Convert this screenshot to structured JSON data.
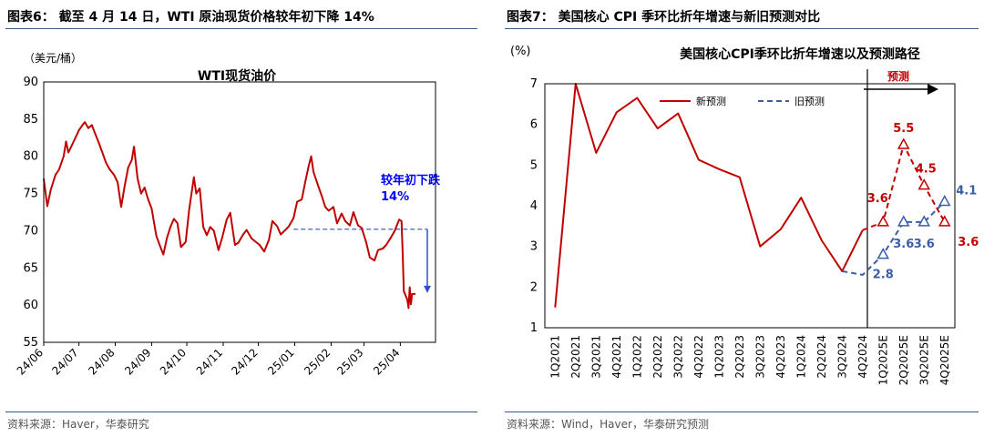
{
  "left": {
    "figure_title": "图表6：  截至 4 月 14 日，WTI 原油现货价格较年初下降 14%",
    "source": "资料来源：Haver，华泰研究",
    "colors": {
      "line": "#c00000",
      "annotation": "#0000ff",
      "dashed": "#2f4fd0",
      "frame": "#3a5a8a"
    },
    "chart_data": {
      "type": "line",
      "title": "WTI现货油价",
      "ylabel": "（美元/桶）",
      "ylim": [
        55,
        90
      ],
      "yticks": [
        55,
        60,
        65,
        70,
        75,
        80,
        85,
        90
      ],
      "xlim": [
        "2024-06-01",
        "2025-05-01"
      ],
      "xtick_labels": [
        "24/06",
        "24/07",
        "24/08",
        "24/09",
        "24/10",
        "24/11",
        "24/12",
        "25/01",
        "25/02",
        "25/03",
        "25/04"
      ],
      "xtick_dates": [
        "2024-06-01",
        "2024-07-01",
        "2024-08-01",
        "2024-09-01",
        "2024-10-01",
        "2024-11-01",
        "2024-12-01",
        "2025-01-01",
        "2025-02-01",
        "2025-03-01",
        "2025-04-01"
      ],
      "series": [
        {
          "points": [
            [
              "2024-06-01",
              77.0
            ],
            [
              "2024-06-04",
              73.3
            ],
            [
              "2024-06-07",
              75.5
            ],
            [
              "2024-06-11",
              77.5
            ],
            [
              "2024-06-14",
              78.2
            ],
            [
              "2024-06-18",
              80.0
            ],
            [
              "2024-06-20",
              82.0
            ],
            [
              "2024-06-22",
              80.5
            ],
            [
              "2024-06-25",
              81.5
            ],
            [
              "2024-06-28",
              82.5
            ],
            [
              "2024-07-01",
              83.5
            ],
            [
              "2024-07-04",
              84.2
            ],
            [
              "2024-07-06",
              84.6
            ],
            [
              "2024-07-09",
              83.8
            ],
            [
              "2024-07-12",
              84.2
            ],
            [
              "2024-07-15",
              83.0
            ],
            [
              "2024-07-18",
              81.8
            ],
            [
              "2024-07-21",
              80.5
            ],
            [
              "2024-07-24",
              79.2
            ],
            [
              "2024-07-27",
              78.3
            ],
            [
              "2024-07-31",
              77.5
            ],
            [
              "2024-08-03",
              76.5
            ],
            [
              "2024-08-06",
              73.2
            ],
            [
              "2024-08-09",
              76.0
            ],
            [
              "2024-08-12",
              78.5
            ],
            [
              "2024-08-15",
              79.5
            ],
            [
              "2024-08-17",
              81.3
            ],
            [
              "2024-08-20",
              77.0
            ],
            [
              "2024-08-23",
              75.0
            ],
            [
              "2024-08-26",
              75.8
            ],
            [
              "2024-08-29",
              74.2
            ],
            [
              "2024-09-01",
              73.0
            ],
            [
              "2024-09-05",
              69.3
            ],
            [
              "2024-09-08",
              68.0
            ],
            [
              "2024-09-11",
              66.8
            ],
            [
              "2024-09-14",
              69.0
            ],
            [
              "2024-09-17",
              70.5
            ],
            [
              "2024-09-20",
              71.6
            ],
            [
              "2024-09-23",
              71.0
            ],
            [
              "2024-09-26",
              67.8
            ],
            [
              "2024-09-30",
              68.5
            ],
            [
              "2024-10-03",
              72.8
            ],
            [
              "2024-10-07",
              77.2
            ],
            [
              "2024-10-09",
              75.0
            ],
            [
              "2024-10-12",
              75.7
            ],
            [
              "2024-10-15",
              70.5
            ],
            [
              "2024-10-18",
              69.4
            ],
            [
              "2024-10-21",
              70.5
            ],
            [
              "2024-10-24",
              70.0
            ],
            [
              "2024-10-28",
              67.4
            ],
            [
              "2024-10-31",
              69.0
            ],
            [
              "2024-11-04",
              71.5
            ],
            [
              "2024-11-07",
              72.4
            ],
            [
              "2024-11-11",
              68.1
            ],
            [
              "2024-11-14",
              68.4
            ],
            [
              "2024-11-18",
              69.5
            ],
            [
              "2024-11-21",
              70.1
            ],
            [
              "2024-11-25",
              69.0
            ],
            [
              "2024-11-28",
              68.6
            ],
            [
              "2024-12-02",
              68.1
            ],
            [
              "2024-12-06",
              67.2
            ],
            [
              "2024-12-10",
              68.8
            ],
            [
              "2024-12-13",
              71.3
            ],
            [
              "2024-12-17",
              70.6
            ],
            [
              "2024-12-20",
              69.5
            ],
            [
              "2024-12-24",
              70.1
            ],
            [
              "2024-12-27",
              70.6
            ],
            [
              "2024-12-31",
              71.7
            ],
            [
              "2025-01-03",
              73.9
            ],
            [
              "2025-01-07",
              74.2
            ],
            [
              "2025-01-10",
              76.6
            ],
            [
              "2025-01-13",
              78.8
            ],
            [
              "2025-01-15",
              80.0
            ],
            [
              "2025-01-17",
              77.9
            ],
            [
              "2025-01-21",
              76.0
            ],
            [
              "2025-01-24",
              74.7
            ],
            [
              "2025-01-27",
              73.2
            ],
            [
              "2025-01-30",
              72.7
            ],
            [
              "2025-02-03",
              73.2
            ],
            [
              "2025-02-06",
              71.0
            ],
            [
              "2025-02-10",
              72.3
            ],
            [
              "2025-02-13",
              71.3
            ],
            [
              "2025-02-17",
              70.7
            ],
            [
              "2025-02-20",
              72.5
            ],
            [
              "2025-02-24",
              70.7
            ],
            [
              "2025-02-27",
              70.4
            ],
            [
              "2025-03-03",
              68.4
            ],
            [
              "2025-03-06",
              66.4
            ],
            [
              "2025-03-10",
              66.0
            ],
            [
              "2025-03-13",
              67.4
            ],
            [
              "2025-03-17",
              67.6
            ],
            [
              "2025-03-20",
              68.1
            ],
            [
              "2025-03-24",
              69.1
            ],
            [
              "2025-03-27",
              69.9
            ],
            [
              "2025-03-31",
              71.5
            ],
            [
              "2025-04-02",
              71.3
            ],
            [
              "2025-04-03",
              66.9
            ],
            [
              "2025-04-04",
              61.9
            ],
            [
              "2025-04-07",
              60.7
            ],
            [
              "2025-04-08",
              59.6
            ],
            [
              "2025-04-09",
              62.4
            ],
            [
              "2025-04-10",
              60.1
            ],
            [
              "2025-04-11",
              61.5
            ],
            [
              "2025-04-14",
              61.5
            ]
          ]
        }
      ],
      "reference_level": 70.2,
      "reference_from": "2024-12-31",
      "arrow_x": "2025-04-24",
      "annotation_lines": [
        "较年初下跌",
        "14%"
      ]
    }
  },
  "right": {
    "figure_title": "图表7：  美国核心 CPI 季环比折年增速与新旧预测对比",
    "source": "资料来源：Wind，Haver，华泰研究预测",
    "colors": {
      "actual": "#c00000",
      "new_forecast": "#c00000",
      "old_forecast": "#3a5ea6",
      "divider": "#000000"
    },
    "chart_data": {
      "type": "line",
      "title": "美国核心CPI季环比折年增速以及预测路径",
      "ylabel": "(%)",
      "ylim": [
        1,
        7
      ],
      "yticks": [
        1,
        2,
        3,
        4,
        5,
        6,
        7
      ],
      "categories": [
        "1Q2021",
        "2Q2021",
        "3Q2021",
        "4Q2021",
        "1Q2022",
        "2Q2022",
        "3Q2022",
        "4Q2022",
        "1Q2023",
        "2Q2023",
        "3Q2023",
        "4Q2023",
        "1Q2024",
        "2Q2024",
        "3Q2024",
        "4Q2024",
        "1Q2025E",
        "2Q2025E",
        "3Q2025E",
        "4Q2025E"
      ],
      "actual": [
        1.5,
        7.0,
        5.3,
        6.3,
        6.65,
        5.9,
        6.27,
        5.13,
        4.9,
        4.7,
        3.0,
        3.42,
        4.2,
        3.15,
        2.39,
        3.4,
        null,
        null,
        null,
        null
      ],
      "series": [
        {
          "name": "新预测",
          "values": [
            null,
            null,
            null,
            null,
            null,
            null,
            null,
            null,
            null,
            null,
            null,
            null,
            null,
            null,
            null,
            3.4,
            3.6,
            5.5,
            4.5,
            3.6
          ]
        },
        {
          "name": "旧预测",
          "values": [
            null,
            null,
            null,
            null,
            null,
            null,
            null,
            null,
            null,
            null,
            null,
            null,
            null,
            null,
            2.39,
            2.3,
            2.8,
            3.6,
            3.6,
            4.1
          ]
        }
      ],
      "new_labels": [
        "3.6",
        "5.5",
        "4.5",
        "3.6"
      ],
      "old_labels": [
        "2.8",
        "3.6",
        "3.6",
        "4.1"
      ],
      "forecast_label": "预测"
    }
  }
}
